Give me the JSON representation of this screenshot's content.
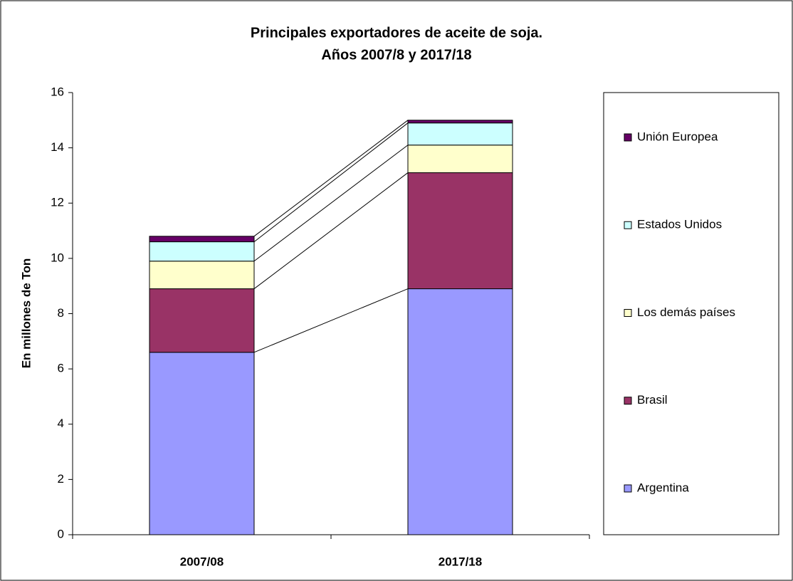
{
  "chart_data": {
    "type": "stacked_bar",
    "title": [
      "Principales exportadores de aceite de soja.",
      "Años 2007/8 y 2017/18"
    ],
    "y_label": "En millones de Ton",
    "categories": [
      "2007/08",
      "2017/18"
    ],
    "series": [
      {
        "name": "Argentina",
        "color": "#9999ff",
        "values": [
          6.6,
          8.9
        ]
      },
      {
        "name": "Brasil",
        "color": "#993366",
        "values": [
          2.3,
          4.2
        ]
      },
      {
        "name": "Los demás países",
        "color": "#ffffcc",
        "values": [
          1.0,
          1.0
        ]
      },
      {
        "name": "Estados Unidos",
        "color": "#ccffff",
        "values": [
          0.7,
          0.8
        ]
      },
      {
        "name": "Unión Europea",
        "color": "#660066",
        "values": [
          0.2,
          0.1
        ]
      }
    ],
    "ylim": [
      0,
      16
    ],
    "yticks": [
      0,
      2,
      4,
      6,
      8,
      10,
      12,
      14,
      16
    ],
    "series_lines": true
  }
}
